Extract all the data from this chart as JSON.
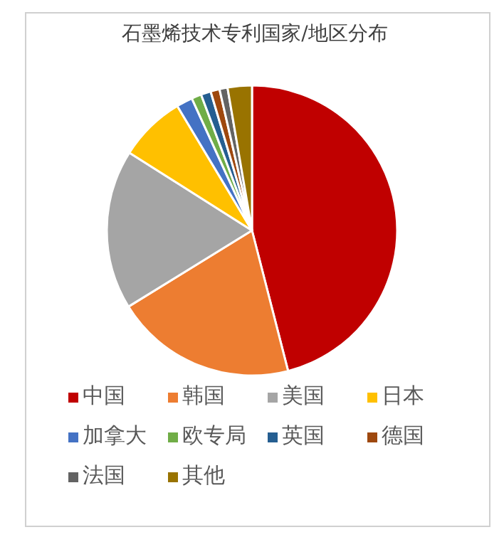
{
  "chart_data": {
    "type": "pie",
    "title": "石墨烯技术专利国家/地区分布",
    "categories": [
      "中国",
      "韩国",
      "美国",
      "日本",
      "加拿大",
      "欧专局",
      "英国",
      "德国",
      "法国",
      "其他"
    ],
    "values": [
      46,
      20.2,
      17.8,
      7.4,
      1.8,
      1.1,
      1.1,
      1,
      0.9,
      2.7
    ],
    "colors": [
      "#c00000",
      "#ed7d31",
      "#a5a5a5",
      "#ffc000",
      "#4472c4",
      "#70ad47",
      "#255e91",
      "#9e480e",
      "#636363",
      "#997300"
    ],
    "legend": "bottom"
  }
}
